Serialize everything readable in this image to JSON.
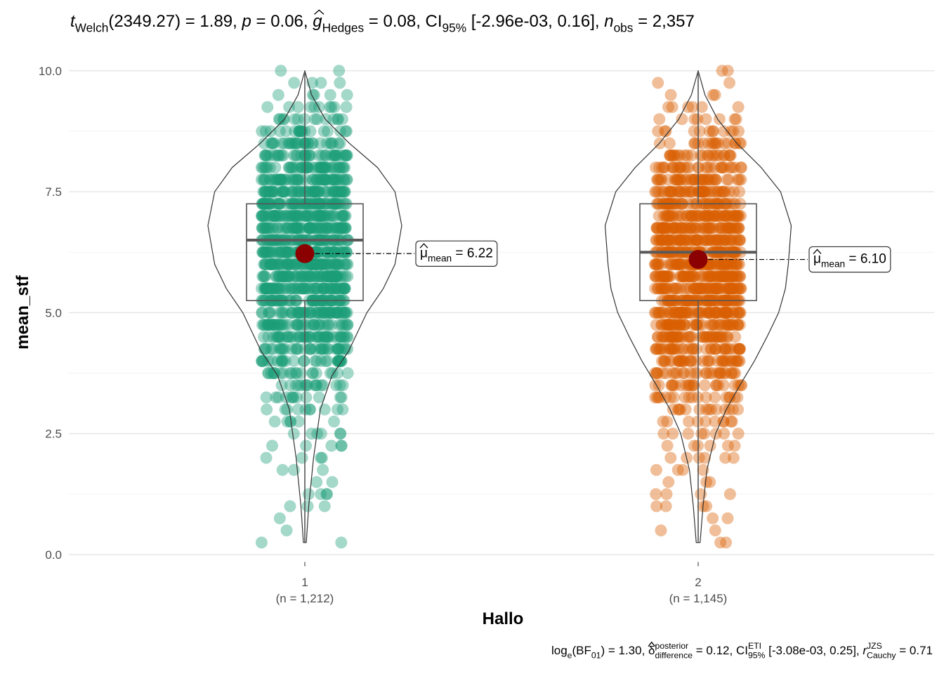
{
  "chart_data": {
    "type": "violin-box",
    "title_parts": [
      {
        "text": "t",
        "style": "italic"
      },
      {
        "text": "Welch",
        "style": "sub"
      },
      {
        "text": "(2349.27) = 1.89, ",
        "style": "normal"
      },
      {
        "text": "p",
        "style": "italic"
      },
      {
        "text": " = 0.06, ",
        "style": "normal"
      },
      {
        "text": "g",
        "style": "italic-hat"
      },
      {
        "text": "Hedges",
        "style": "sub"
      },
      {
        "text": " = 0.08, CI",
        "style": "normal"
      },
      {
        "text": "95%",
        "style": "sub"
      },
      {
        "text": " [-2.96e-03, 0.16], ",
        "style": "normal"
      },
      {
        "text": "n",
        "style": "italic"
      },
      {
        "text": "obs",
        "style": "sub"
      },
      {
        "text": " = 2,357",
        "style": "normal"
      }
    ],
    "caption_parts": [
      {
        "text": "log",
        "style": "normal"
      },
      {
        "text": "e",
        "style": "sub"
      },
      {
        "text": "(BF",
        "style": "normal"
      },
      {
        "text": "01",
        "style": "sub"
      },
      {
        "text": ") = 1.30, ",
        "style": "normal"
      },
      {
        "text": "δ",
        "style": "hat"
      },
      {
        "text": "posterior",
        "style": "sup"
      },
      {
        "text": "difference",
        "style": "sub",
        "stack": true
      },
      {
        "text": " = 0.12, CI",
        "style": "normal"
      },
      {
        "text": "ETI",
        "style": "sup"
      },
      {
        "text": "95%",
        "style": "sub",
        "stack": true
      },
      {
        "text": " [-3.08e-03, 0.25], ",
        "style": "normal"
      },
      {
        "text": "r",
        "style": "italic"
      },
      {
        "text": "JZS",
        "style": "sup"
      },
      {
        "text": "Cauchy",
        "style": "sub",
        "stack": true
      },
      {
        "text": " = 0.71",
        "style": "normal"
      }
    ],
    "x_label": "Hallo",
    "y_label": "mean_stf",
    "categories": [
      "1",
      "2"
    ],
    "category_sublabels": [
      "(n = 1,212)",
      "(n = 1,145)"
    ],
    "xlim": [
      0.4,
      2.6
    ],
    "ylim": [
      -0.24,
      10.49
    ],
    "yticks": [
      {
        "value": 0,
        "label": "0.0"
      },
      {
        "value": 2.5,
        "label": "2.5"
      },
      {
        "value": 5,
        "label": "5.0"
      },
      {
        "value": 7.5,
        "label": "7.5"
      },
      {
        "value": 10,
        "label": "10.0"
      }
    ],
    "minor_yticks": [
      1.25,
      3.75,
      6.25,
      8.75
    ],
    "grid": true,
    "mean_color": "#8b0000",
    "mean_label_parts": [
      {
        "text": "μ",
        "style": "hat"
      },
      {
        "text": "mean",
        "style": "sub"
      },
      {
        "text": " = ",
        "style": "normal"
      }
    ],
    "groups": [
      {
        "color": "#1b9e77",
        "point_levels": [
          0.25,
          0.5,
          0.75,
          1,
          1.25,
          1.5,
          1.75,
          2,
          2.25,
          2.5,
          2.75,
          3,
          3.25,
          3.5,
          3.75,
          4,
          4.25,
          4.5,
          4.75,
          5,
          5.25,
          5.5,
          5.75,
          6,
          6.25,
          6.5,
          6.75,
          7,
          7.25,
          7.5,
          7.75,
          8,
          8.25,
          8.5,
          8.75,
          9,
          9.25,
          9.5,
          9.75,
          10
        ],
        "point_counts": [
          2,
          1,
          1,
          3,
          4,
          2,
          3,
          4,
          5,
          6,
          6,
          10,
          12,
          16,
          20,
          30,
          35,
          45,
          45,
          54,
          58,
          68,
          70,
          75,
          75,
          70,
          70,
          67,
          70,
          62,
          55,
          45,
          38,
          30,
          20,
          14,
          10,
          5,
          4,
          2
        ],
        "violin": {
          "y": [
            0.25,
            1,
            2,
            3,
            3.7,
            4.2,
            5,
            5.5,
            6,
            6.8,
            7.5,
            8,
            8.5,
            9,
            9.5,
            10
          ],
          "width": [
            0.015,
            0.04,
            0.09,
            0.16,
            0.28,
            0.45,
            0.64,
            0.81,
            0.93,
            1,
            0.93,
            0.75,
            0.46,
            0.21,
            0.07,
            0
          ]
        },
        "box": {
          "lower_whisker": 0.25,
          "q1": 5.25,
          "median": 6.5,
          "q3": 7.25,
          "upper_whisker": 10
        },
        "mean": 6.22,
        "mean_label": "6.22"
      },
      {
        "color": "#d95f02",
        "point_levels": [
          0.25,
          0.5,
          0.75,
          1,
          1.25,
          1.5,
          1.75,
          2,
          2.25,
          2.5,
          2.75,
          3,
          3.25,
          3.5,
          3.75,
          4,
          4.25,
          4.5,
          4.75,
          5,
          5.25,
          5.5,
          5.75,
          6,
          6.25,
          6.5,
          6.75,
          7,
          7.25,
          7.5,
          7.75,
          8,
          8.25,
          8.5,
          8.75,
          9,
          9.25,
          9.5,
          9.75,
          10
        ],
        "point_counts": [
          2,
          2,
          2,
          4,
          4,
          3,
          4,
          6,
          6,
          8,
          10,
          14,
          18,
          22,
          28,
          36,
          40,
          46,
          50,
          65,
          68,
          68,
          70,
          72,
          70,
          68,
          66,
          55,
          50,
          45,
          38,
          30,
          24,
          18,
          12,
          8,
          6,
          3,
          2,
          2
        ],
        "violin": {
          "y": [
            0.25,
            1,
            1.75,
            2.5,
            3,
            3.5,
            4,
            4.5,
            5,
            5.5,
            6,
            6.8,
            7.5,
            8,
            8.5,
            9,
            9.5,
            10
          ],
          "width": [
            0.02,
            0.05,
            0.09,
            0.18,
            0.29,
            0.43,
            0.58,
            0.71,
            0.83,
            0.9,
            0.93,
            0.96,
            0.85,
            0.65,
            0.4,
            0.2,
            0.07,
            0
          ]
        },
        "box": {
          "lower_whisker": 0.25,
          "q1": 5.25,
          "median": 6.25,
          "q3": 7.25,
          "upper_whisker": 10
        },
        "mean": 6.1,
        "mean_label": "6.10"
      }
    ]
  }
}
